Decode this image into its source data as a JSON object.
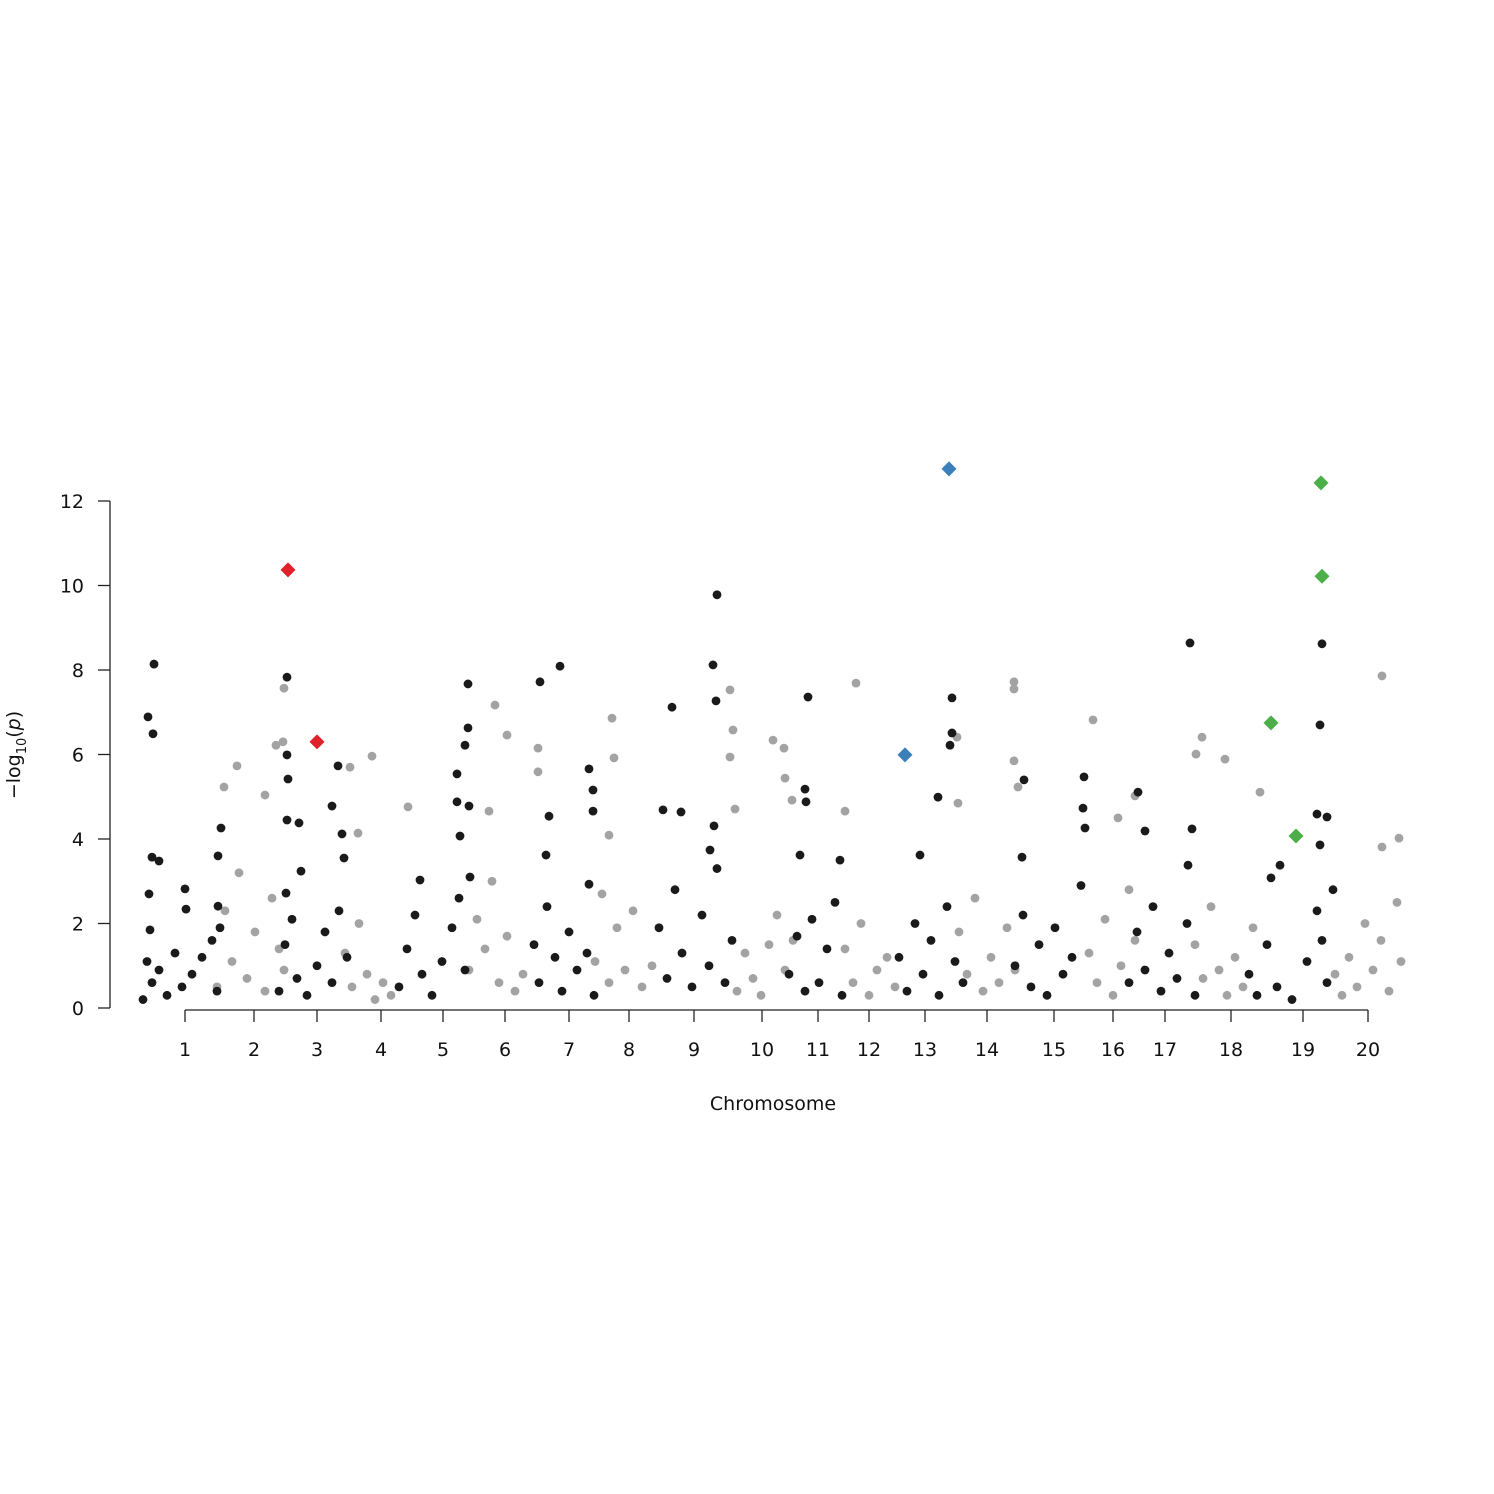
{
  "chart_data": {
    "type": "scatter",
    "xlabel": "Chromosome",
    "ylabel": [
      "−log",
      "10",
      "(",
      "p",
      ")"
    ],
    "xlim": [
      0,
      1306
    ],
    "xticks": [
      {
        "value": 88,
        "label": "1"
      },
      {
        "value": 157,
        "label": "2"
      },
      {
        "value": 220,
        "label": "3"
      },
      {
        "value": 284,
        "label": "4"
      },
      {
        "value": 346,
        "label": "5"
      },
      {
        "value": 408,
        "label": "6"
      },
      {
        "value": 472,
        "label": "7"
      },
      {
        "value": 532,
        "label": "8"
      },
      {
        "value": 597,
        "label": "9"
      },
      {
        "value": 665,
        "label": "10"
      },
      {
        "value": 721,
        "label": "11"
      },
      {
        "value": 772,
        "label": "12"
      },
      {
        "value": 828,
        "label": "13"
      },
      {
        "value": 890,
        "label": "14"
      },
      {
        "value": 957,
        "label": "15"
      },
      {
        "value": 1016,
        "label": "16"
      },
      {
        "value": 1068,
        "label": "17"
      },
      {
        "value": 1134,
        "label": "18"
      },
      {
        "value": 1206,
        "label": "19"
      },
      {
        "value": 1271,
        "label": "20"
      }
    ],
    "ylim": [
      0,
      12
    ],
    "yticks": [
      0,
      2,
      4,
      6,
      8,
      10,
      12
    ],
    "grid": false,
    "series": [
      {
        "color": "#a3a3a3",
        "marker": "circle",
        "x": [
          187,
          179,
          186,
          140,
          127,
          168,
          275,
          253,
          311,
          261,
          398,
          410,
          392,
          441,
          441,
          515,
          517,
          512,
          633,
          636,
          633,
          638,
          676,
          687,
          688,
          695,
          759,
          748,
          860,
          861,
          917,
          917,
          917,
          921,
          996,
          1021,
          1038,
          1105,
          1099,
          1128,
          1163,
          1285,
          1285,
          1302,
          120,
          128,
          135,
          142,
          150,
          158,
          168,
          175,
          182,
          187,
          248,
          255,
          262,
          270,
          278,
          286,
          294,
          372,
          380,
          388,
          395,
          402,
          410,
          418,
          426,
          498,
          505,
          512,
          520,
          528,
          536,
          545,
          555,
          640,
          648,
          656,
          664,
          672,
          680,
          688,
          696,
          748,
          756,
          764,
          772,
          780,
          790,
          798,
          862,
          870,
          878,
          886,
          894,
          902,
          910,
          918,
          992,
          1000,
          1008,
          1016,
          1024,
          1032,
          1038,
          1098,
          1106,
          1114,
          1122,
          1130,
          1138,
          1146,
          1156,
          1238,
          1245,
          1252,
          1260,
          1268,
          1276,
          1284,
          1292,
          1300,
          1304
        ],
        "values": [
          7.57,
          6.22,
          6.3,
          5.73,
          5.23,
          5.04,
          5.96,
          5.7,
          4.76,
          4.14,
          7.17,
          6.46,
          4.66,
          6.15,
          5.59,
          6.86,
          5.92,
          4.09,
          7.53,
          6.58,
          5.94,
          4.71,
          6.34,
          6.15,
          5.44,
          4.92,
          7.69,
          4.66,
          6.41,
          4.85,
          7.72,
          7.55,
          5.85,
          5.23,
          6.82,
          4.5,
          5.02,
          6.41,
          6.01,
          5.89,
          5.11,
          7.86,
          3.81,
          4.02,
          0.5,
          2.3,
          1.1,
          3.2,
          0.7,
          1.8,
          0.4,
          2.6,
          1.4,
          0.9,
          1.3,
          0.5,
          2.0,
          0.8,
          0.2,
          0.6,
          0.3,
          0.9,
          2.1,
          1.4,
          3.0,
          0.6,
          1.7,
          0.4,
          0.8,
          1.1,
          2.7,
          0.6,
          1.9,
          0.9,
          2.3,
          0.5,
          1.0,
          0.4,
          1.3,
          0.7,
          0.3,
          1.5,
          2.2,
          0.9,
          1.6,
          1.4,
          0.6,
          2.0,
          0.3,
          0.9,
          1.2,
          0.5,
          1.8,
          0.8,
          2.6,
          0.4,
          1.2,
          0.6,
          1.9,
          0.9,
          1.3,
          0.6,
          2.1,
          0.3,
          1.0,
          2.8,
          1.6,
          1.5,
          0.7,
          2.4,
          0.9,
          0.3,
          1.2,
          0.5,
          1.9,
          0.8,
          0.3,
          1.2,
          0.5,
          2.0,
          0.9,
          1.6,
          0.4,
          2.5,
          1.1
        ]
      },
      {
        "color": "#1a1a1a",
        "marker": "circle",
        "x": [
          51,
          57,
          56,
          55,
          62,
          52,
          53,
          88,
          89,
          121,
          124,
          121,
          190,
          190,
          191,
          190,
          202,
          189,
          241,
          235,
          245,
          247,
          204,
          360,
          371,
          371,
          368,
          360,
          372,
          363,
          323,
          443,
          463,
          452,
          449,
          492,
          496,
          496,
          492,
          575,
          620,
          616,
          619,
          584,
          566,
          617,
          613,
          711,
          708,
          709,
          703,
          743,
          855,
          855,
          853,
          841,
          823,
          927,
          925,
          987,
          986,
          988,
          1041,
          1048,
          1093,
          1095,
          1091,
          1225,
          1223,
          1220,
          1230,
          1223,
          1174,
          1183,
          46,
          50,
          55,
          62,
          70,
          78,
          85,
          95,
          105,
          115,
          120,
          123,
          182,
          188,
          195,
          200,
          210,
          220,
          228,
          235,
          242,
          250,
          302,
          310,
          318,
          325,
          335,
          345,
          355,
          362,
          368,
          373,
          437,
          442,
          450,
          458,
          465,
          472,
          480,
          490,
          497,
          562,
          570,
          578,
          585,
          595,
          605,
          612,
          620,
          628,
          635,
          692,
          700,
          708,
          715,
          722,
          730,
          738,
          745,
          802,
          810,
          818,
          826,
          834,
          842,
          850,
          858,
          866,
          918,
          926,
          934,
          942,
          950,
          958,
          966,
          975,
          984,
          1032,
          1040,
          1048,
          1056,
          1064,
          1072,
          1080,
          1090,
          1098,
          1152,
          1160,
          1170,
          1180,
          1195,
          1210,
          1220,
          1225,
          1230,
          1236
        ],
        "values": [
          6.89,
          8.14,
          6.49,
          3.57,
          3.48,
          2.7,
          1.85,
          2.82,
          2.34,
          2.41,
          4.26,
          3.6,
          7.83,
          5.99,
          5.42,
          4.45,
          4.38,
          2.72,
          5.73,
          4.78,
          4.12,
          3.55,
          3.24,
          5.54,
          7.67,
          6.63,
          6.22,
          4.88,
          4.78,
          4.07,
          3.03,
          7.72,
          8.09,
          4.54,
          3.62,
          5.66,
          5.16,
          4.66,
          2.93,
          7.12,
          9.78,
          8.12,
          7.27,
          4.64,
          4.69,
          4.31,
          3.74,
          7.36,
          5.18,
          4.88,
          3.62,
          3.5,
          7.34,
          6.51,
          6.22,
          4.99,
          3.62,
          5.4,
          3.57,
          5.47,
          4.73,
          4.26,
          5.11,
          4.19,
          8.64,
          4.24,
          3.38,
          8.62,
          6.7,
          4.59,
          4.52,
          3.86,
          3.08,
          3.38,
          0.2,
          1.1,
          0.6,
          0.9,
          0.3,
          1.3,
          0.5,
          0.8,
          1.2,
          1.6,
          0.4,
          1.9,
          0.4,
          1.5,
          2.1,
          0.7,
          0.3,
          1.0,
          1.8,
          0.6,
          2.3,
          1.2,
          0.5,
          1.4,
          2.2,
          0.8,
          0.3,
          1.1,
          1.9,
          2.6,
          0.9,
          3.1,
          1.5,
          0.6,
          2.4,
          1.2,
          0.4,
          1.8,
          0.9,
          1.3,
          0.3,
          1.9,
          0.7,
          2.8,
          1.3,
          0.5,
          2.2,
          1.0,
          3.3,
          0.6,
          1.6,
          0.8,
          1.7,
          0.4,
          2.1,
          0.6,
          1.4,
          2.5,
          0.3,
          1.2,
          0.4,
          2.0,
          0.8,
          1.6,
          0.3,
          2.4,
          1.1,
          0.6,
          1.0,
          2.2,
          0.5,
          1.5,
          0.3,
          1.9,
          0.8,
          1.2,
          2.9,
          0.6,
          1.8,
          0.9,
          2.4,
          0.4,
          1.3,
          0.7,
          2.0,
          0.3,
          0.8,
          0.3,
          1.5,
          0.5,
          0.2,
          1.1,
          2.3,
          1.6,
          0.6,
          2.8
        ]
      },
      {
        "color": "#e0202a",
        "marker": "diamond",
        "x": [
          191,
          220
        ],
        "values": [
          10.37,
          6.3
        ]
      },
      {
        "color": "#3b7fb9",
        "marker": "diamond",
        "x": [
          852,
          808
        ],
        "values": [
          12.76,
          5.99
        ]
      },
      {
        "color": "#4caf4a",
        "marker": "diamond",
        "x": [
          1224,
          1225,
          1174,
          1199
        ],
        "values": [
          12.43,
          10.22,
          6.75,
          4.07
        ]
      }
    ]
  }
}
